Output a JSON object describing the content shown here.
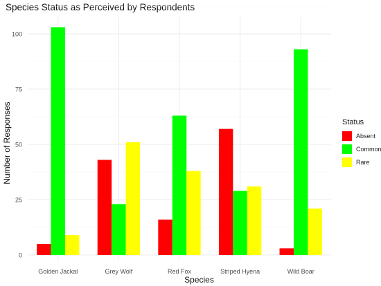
{
  "chart_data": {
    "type": "bar",
    "title": "Species Status as Perceived by Respondents",
    "xlabel": "Species",
    "ylabel": "Number of Responses",
    "categories": [
      "Golden Jackal",
      "Grey Wolf",
      "Red Fox",
      "Striped Hyena",
      "Wild Boar"
    ],
    "series": [
      {
        "name": "Absent",
        "color": "#ff0000",
        "values": [
          5,
          43,
          16,
          57,
          3
        ]
      },
      {
        "name": "Common",
        "color": "#00ff00",
        "values": [
          103,
          23,
          63,
          29,
          93
        ]
      },
      {
        "name": "Rare",
        "color": "#ffff00",
        "values": [
          9,
          51,
          38,
          31,
          21
        ]
      }
    ],
    "ylim": [
      0,
      110
    ],
    "yticks": [
      0,
      25,
      50,
      75,
      100
    ],
    "grid": true,
    "legend": {
      "title": "Status",
      "placement": "right"
    }
  }
}
